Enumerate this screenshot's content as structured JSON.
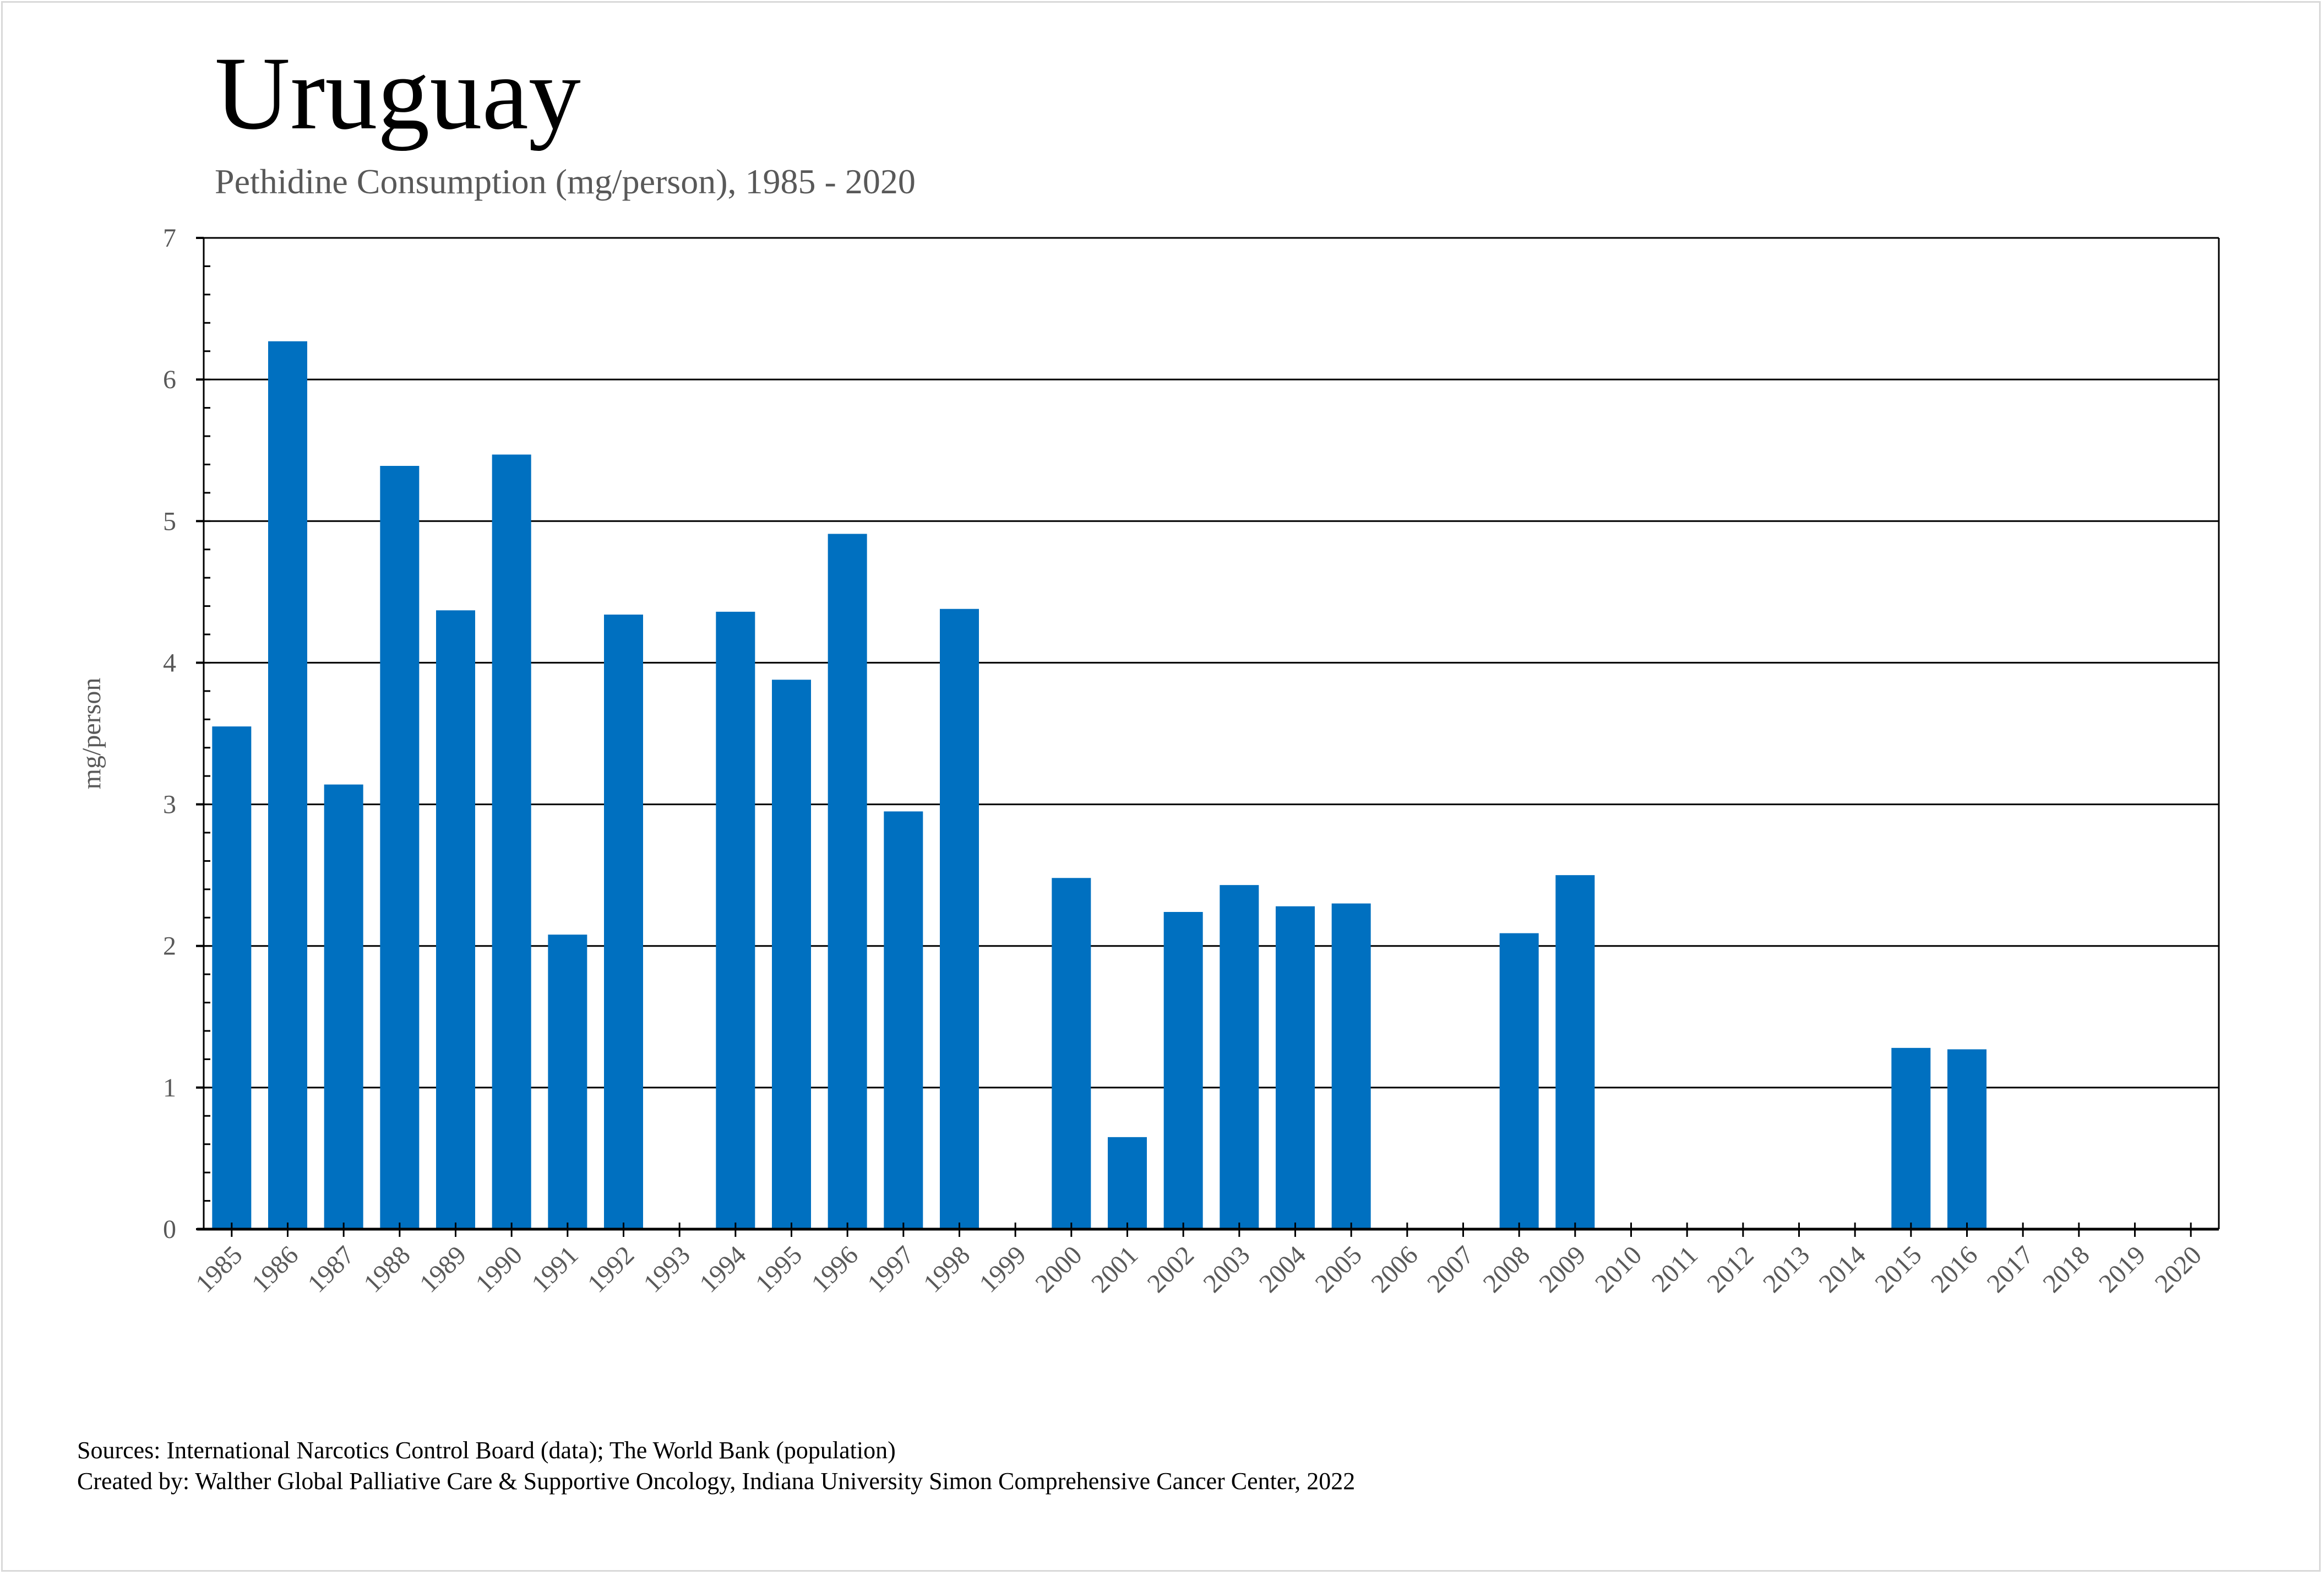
{
  "header": {
    "title": "Uruguay",
    "subtitle": "Pethidine Consumption (mg/person), 1985 - 2020"
  },
  "footer": {
    "sources": "Sources: International Narcotics Control Board (data); The World Bank (population)",
    "created_by": "Created by: Walther Global Palliative Care & Supportive Oncology, Indiana University Simon Comprehensive Cancer Center, 2022"
  },
  "colors": {
    "bar": "#0070C0",
    "gridline": "#000000",
    "tick_text": "#595959"
  },
  "chart_data": {
    "type": "bar",
    "title": "Uruguay",
    "subtitle": "Pethidine Consumption (mg/person), 1985 - 2020",
    "xlabel": "",
    "ylabel": "mg/person",
    "ylim": [
      0,
      7
    ],
    "yticks": [
      0,
      1,
      2,
      3,
      4,
      5,
      6,
      7
    ],
    "y_minor_step": 0.2,
    "grid": true,
    "legend": "none",
    "categories": [
      "1985",
      "1986",
      "1987",
      "1988",
      "1989",
      "1990",
      "1991",
      "1992",
      "1993",
      "1994",
      "1995",
      "1996",
      "1997",
      "1998",
      "1999",
      "2000",
      "2001",
      "2002",
      "2003",
      "2004",
      "2005",
      "2006",
      "2007",
      "2008",
      "2009",
      "2010",
      "2011",
      "2012",
      "2013",
      "2014",
      "2015",
      "2016",
      "2017",
      "2018",
      "2019",
      "2020"
    ],
    "values": [
      3.55,
      6.27,
      3.14,
      5.39,
      4.37,
      5.47,
      2.08,
      4.34,
      null,
      4.36,
      3.88,
      4.91,
      2.95,
      4.38,
      null,
      2.48,
      0.65,
      2.24,
      2.43,
      2.28,
      2.3,
      null,
      null,
      2.09,
      2.5,
      null,
      null,
      null,
      null,
      null,
      1.28,
      1.27,
      null,
      null,
      null,
      null
    ]
  }
}
